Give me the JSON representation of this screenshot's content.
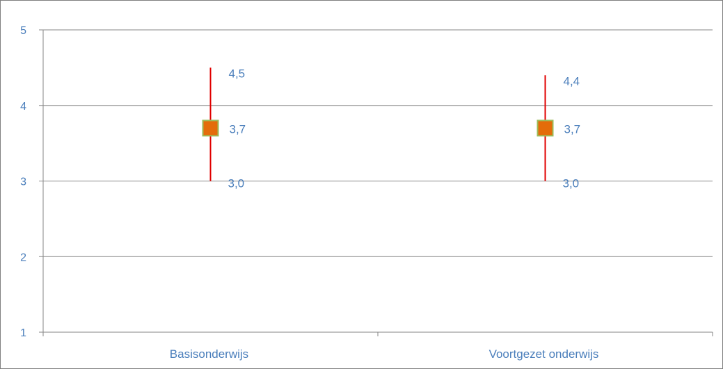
{
  "chart_data": {
    "type": "scatter",
    "categories": [
      "Basisonderwijs",
      "Voortgezet onderwijs"
    ],
    "series": [
      {
        "values": [
          3.7,
          3.7
        ],
        "high": [
          4.5,
          4.4
        ],
        "low": [
          3.0,
          3.0
        ],
        "labels": [
          "3,7",
          "3,7"
        ],
        "high_labels": [
          "4,5",
          "4,4"
        ],
        "low_labels": [
          "3,0",
          "3,0"
        ]
      }
    ],
    "ylim": [
      1,
      5
    ],
    "yticks": [
      "1",
      "2",
      "3",
      "4",
      "5"
    ],
    "title": "",
    "xlabel": "",
    "ylabel": "",
    "grid": true,
    "legend": "none",
    "colors": {
      "marker_fill": "#e46c0a",
      "marker_border": "#9bbb59",
      "error_bar": "#e00000",
      "label_text": "#4a7ebb",
      "gridline": "#868686",
      "axis": "#868686"
    }
  }
}
